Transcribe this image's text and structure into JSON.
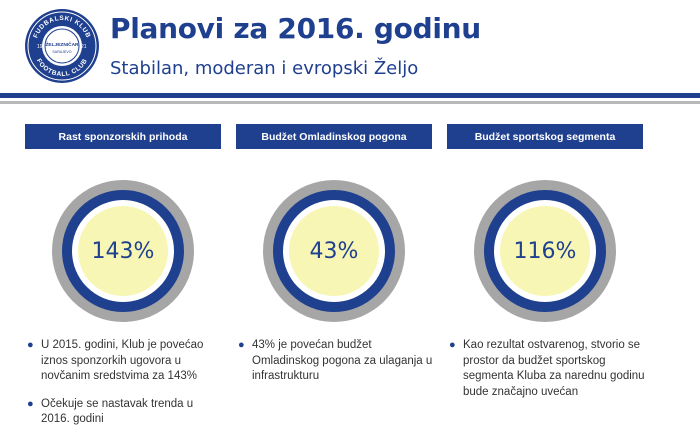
{
  "logo": {
    "ring_text_top": "FUDBALSKI KLUB",
    "ring_text_bottom": "FOOTBALL CLUB",
    "center_text": "ŽELJEZNIČAR",
    "left_year": "19",
    "right_year": "21",
    "bottom_text": "SARAJEVO"
  },
  "header": {
    "title": "Planovi za 2016. godinu",
    "subtitle": "Stabilan, moderan i evropski Željo"
  },
  "colors": {
    "primary": "#1f3f8f",
    "ring_gray": "#a6a6a6",
    "center_fill": "#f7f6b4"
  },
  "columns": [
    {
      "header": "Rast sponzorskih prihoda",
      "value": "143%",
      "bullets": [
        "U 2015. godini, Klub je povećao iznos sponzorkih ugovora u novčanim sredstvima za 143%",
        "Očekuje se nastavak trenda u 2016. godini"
      ]
    },
    {
      "header": "Budžet Omladinskog pogona",
      "value": "43%",
      "bullets": [
        "43% je povećan budžet Omladinskog pogona za ulaganja u infrastrukturu"
      ]
    },
    {
      "header": "Budžet sportskog segmenta",
      "value": "116%",
      "bullets": [
        "Kao rezultat ostvarenog, stvorio se prostor da budžet sportskog segmenta Kluba za narednu godinu bude značajno uvećan"
      ]
    }
  ]
}
